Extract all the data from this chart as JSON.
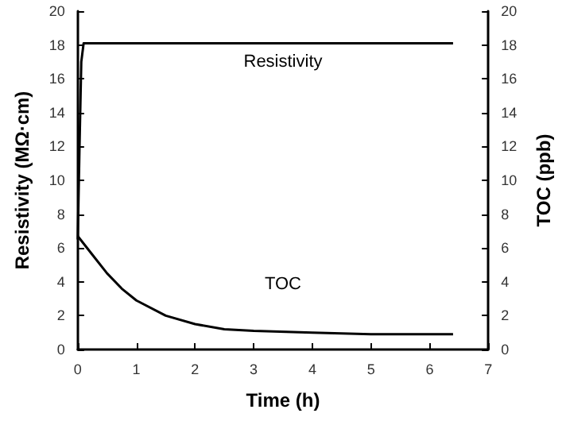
{
  "chart_data": {
    "type": "line",
    "xlabel": "Time (h)",
    "ylabel": "Resistivity (MΩ·cm)",
    "y2label": "TOC (ppb)",
    "xlim": [
      0,
      7
    ],
    "xticks": [
      0,
      1,
      2,
      3,
      4,
      5,
      6,
      7
    ],
    "ylim": [
      0,
      20
    ],
    "yticks": [
      0,
      2,
      4,
      6,
      8,
      10,
      12,
      14,
      16,
      18,
      20
    ],
    "y2lim": [
      0,
      20
    ],
    "y2ticks": [
      0,
      2,
      4,
      6,
      8,
      10,
      12,
      14,
      16,
      18,
      20
    ],
    "grid": false,
    "marker": "none",
    "line_style": "solid",
    "series": [
      {
        "name": "Resistivity",
        "color": "#000000",
        "x": [
          0,
          0.03,
          0.06,
          0.1,
          6.4
        ],
        "values": [
          6.5,
          12,
          17,
          18.1,
          18.1
        ]
      },
      {
        "name": "TOC",
        "color": "#000000",
        "axis": "y2",
        "x": [
          0,
          0.25,
          0.5,
          0.75,
          1,
          1.5,
          2,
          2.5,
          3,
          4,
          5,
          6.4
        ],
        "values": [
          6.7,
          5.6,
          4.5,
          3.6,
          2.9,
          2.0,
          1.5,
          1.2,
          1.1,
          1.0,
          0.9,
          0.9
        ]
      }
    ]
  }
}
